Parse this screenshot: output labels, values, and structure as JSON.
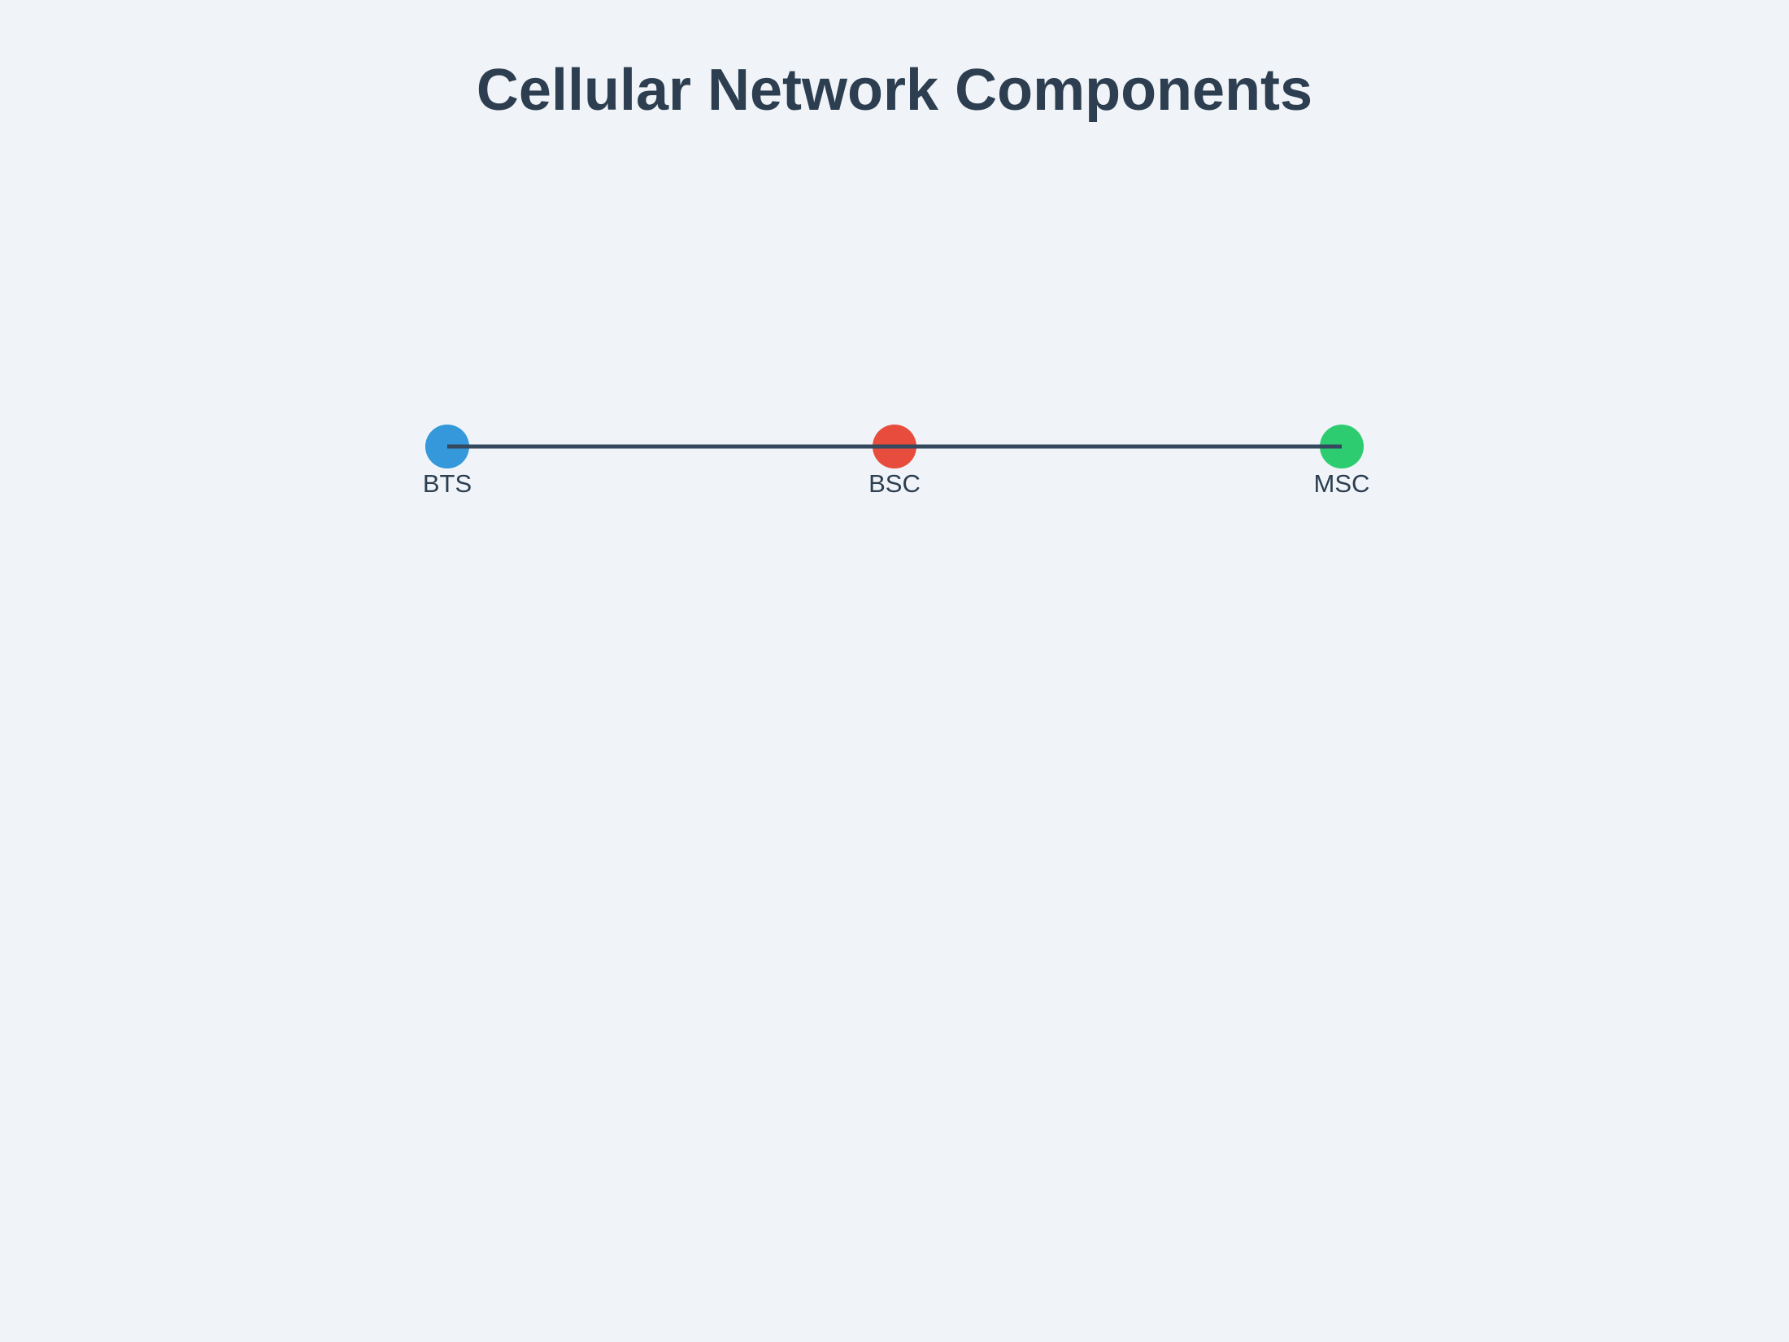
{
  "title": "Cellular Network Components",
  "nodes": [
    {
      "id": "bts",
      "label": "BTS",
      "color": "#3498db"
    },
    {
      "id": "bsc",
      "label": "BSC",
      "color": "#e74c3c"
    },
    {
      "id": "msc",
      "label": "MSC",
      "color": "#2ecc71"
    }
  ],
  "links": [
    {
      "from": "bts",
      "to": "bsc"
    },
    {
      "from": "bsc",
      "to": "msc"
    }
  ],
  "link_color": "#34495e"
}
